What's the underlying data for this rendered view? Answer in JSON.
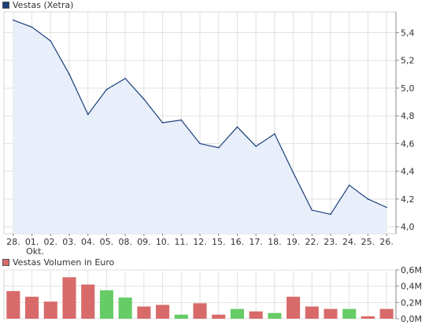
{
  "chart_data": [
    {
      "type": "area",
      "legend": "Vestas (Xetra)",
      "color": "#1a3f7a",
      "fill": "#e8eefa",
      "x": [
        "28.",
        "01.",
        "02.",
        "03.",
        "04.",
        "05.",
        "08.",
        "09.",
        "10.",
        "11.",
        "12.",
        "15.",
        "16.",
        "17.",
        "18.",
        "19.",
        "22.",
        "23.",
        "24.",
        "25.",
        "26."
      ],
      "x_sublabel": {
        "index": 1,
        "text": "Okt."
      },
      "values": [
        5.49,
        5.44,
        5.34,
        5.1,
        4.81,
        4.99,
        5.07,
        4.92,
        4.75,
        4.77,
        4.6,
        4.57,
        4.72,
        4.58,
        4.67,
        4.39,
        4.12,
        4.09,
        4.3,
        4.2,
        4.14
      ],
      "ylim": [
        3.95,
        5.55
      ],
      "yticks": [
        {
          "v": 4.0,
          "label": "4,0"
        },
        {
          "v": 4.2,
          "label": "4,2"
        },
        {
          "v": 4.4,
          "label": "4,4"
        },
        {
          "v": 4.6,
          "label": "4,6"
        },
        {
          "v": 4.8,
          "label": "4,8"
        },
        {
          "v": 5.0,
          "label": "5,0"
        },
        {
          "v": 5.2,
          "label": "5,2"
        },
        {
          "v": 5.4,
          "label": "5,4"
        }
      ],
      "grid": true
    },
    {
      "type": "bar",
      "legend": "Vestas Volumen in Euro",
      "legend_color": "#d96a6a",
      "up_color": "#66cc66",
      "down_color": "#d96a6a",
      "x": [
        "28.",
        "01.",
        "02.",
        "03.",
        "04.",
        "05.",
        "08.",
        "09.",
        "10.",
        "11.",
        "12.",
        "15.",
        "16.",
        "17.",
        "18.",
        "19.",
        "22.",
        "23.",
        "24.",
        "25.",
        "26."
      ],
      "values": [
        0.34,
        0.27,
        0.21,
        0.51,
        0.42,
        0.35,
        0.26,
        0.15,
        0.17,
        0.05,
        0.19,
        0.05,
        0.12,
        0.09,
        0.07,
        0.27,
        0.15,
        0.12,
        0.12,
        0.03,
        0.12
      ],
      "direction": [
        "down",
        "down",
        "down",
        "down",
        "down",
        "up",
        "up",
        "down",
        "down",
        "up",
        "down",
        "down",
        "up",
        "down",
        "up",
        "down",
        "down",
        "down",
        "up",
        "down",
        "down"
      ],
      "unit": "M EUR",
      "ylim": [
        0,
        0.6
      ],
      "yticks": [
        {
          "v": 0,
          "label": "0,0M"
        },
        {
          "v": 0.2,
          "label": "0,2M"
        },
        {
          "v": 0.4,
          "label": "0,4M"
        },
        {
          "v": 0.6,
          "label": "0,6M"
        }
      ],
      "grid": true
    }
  ]
}
